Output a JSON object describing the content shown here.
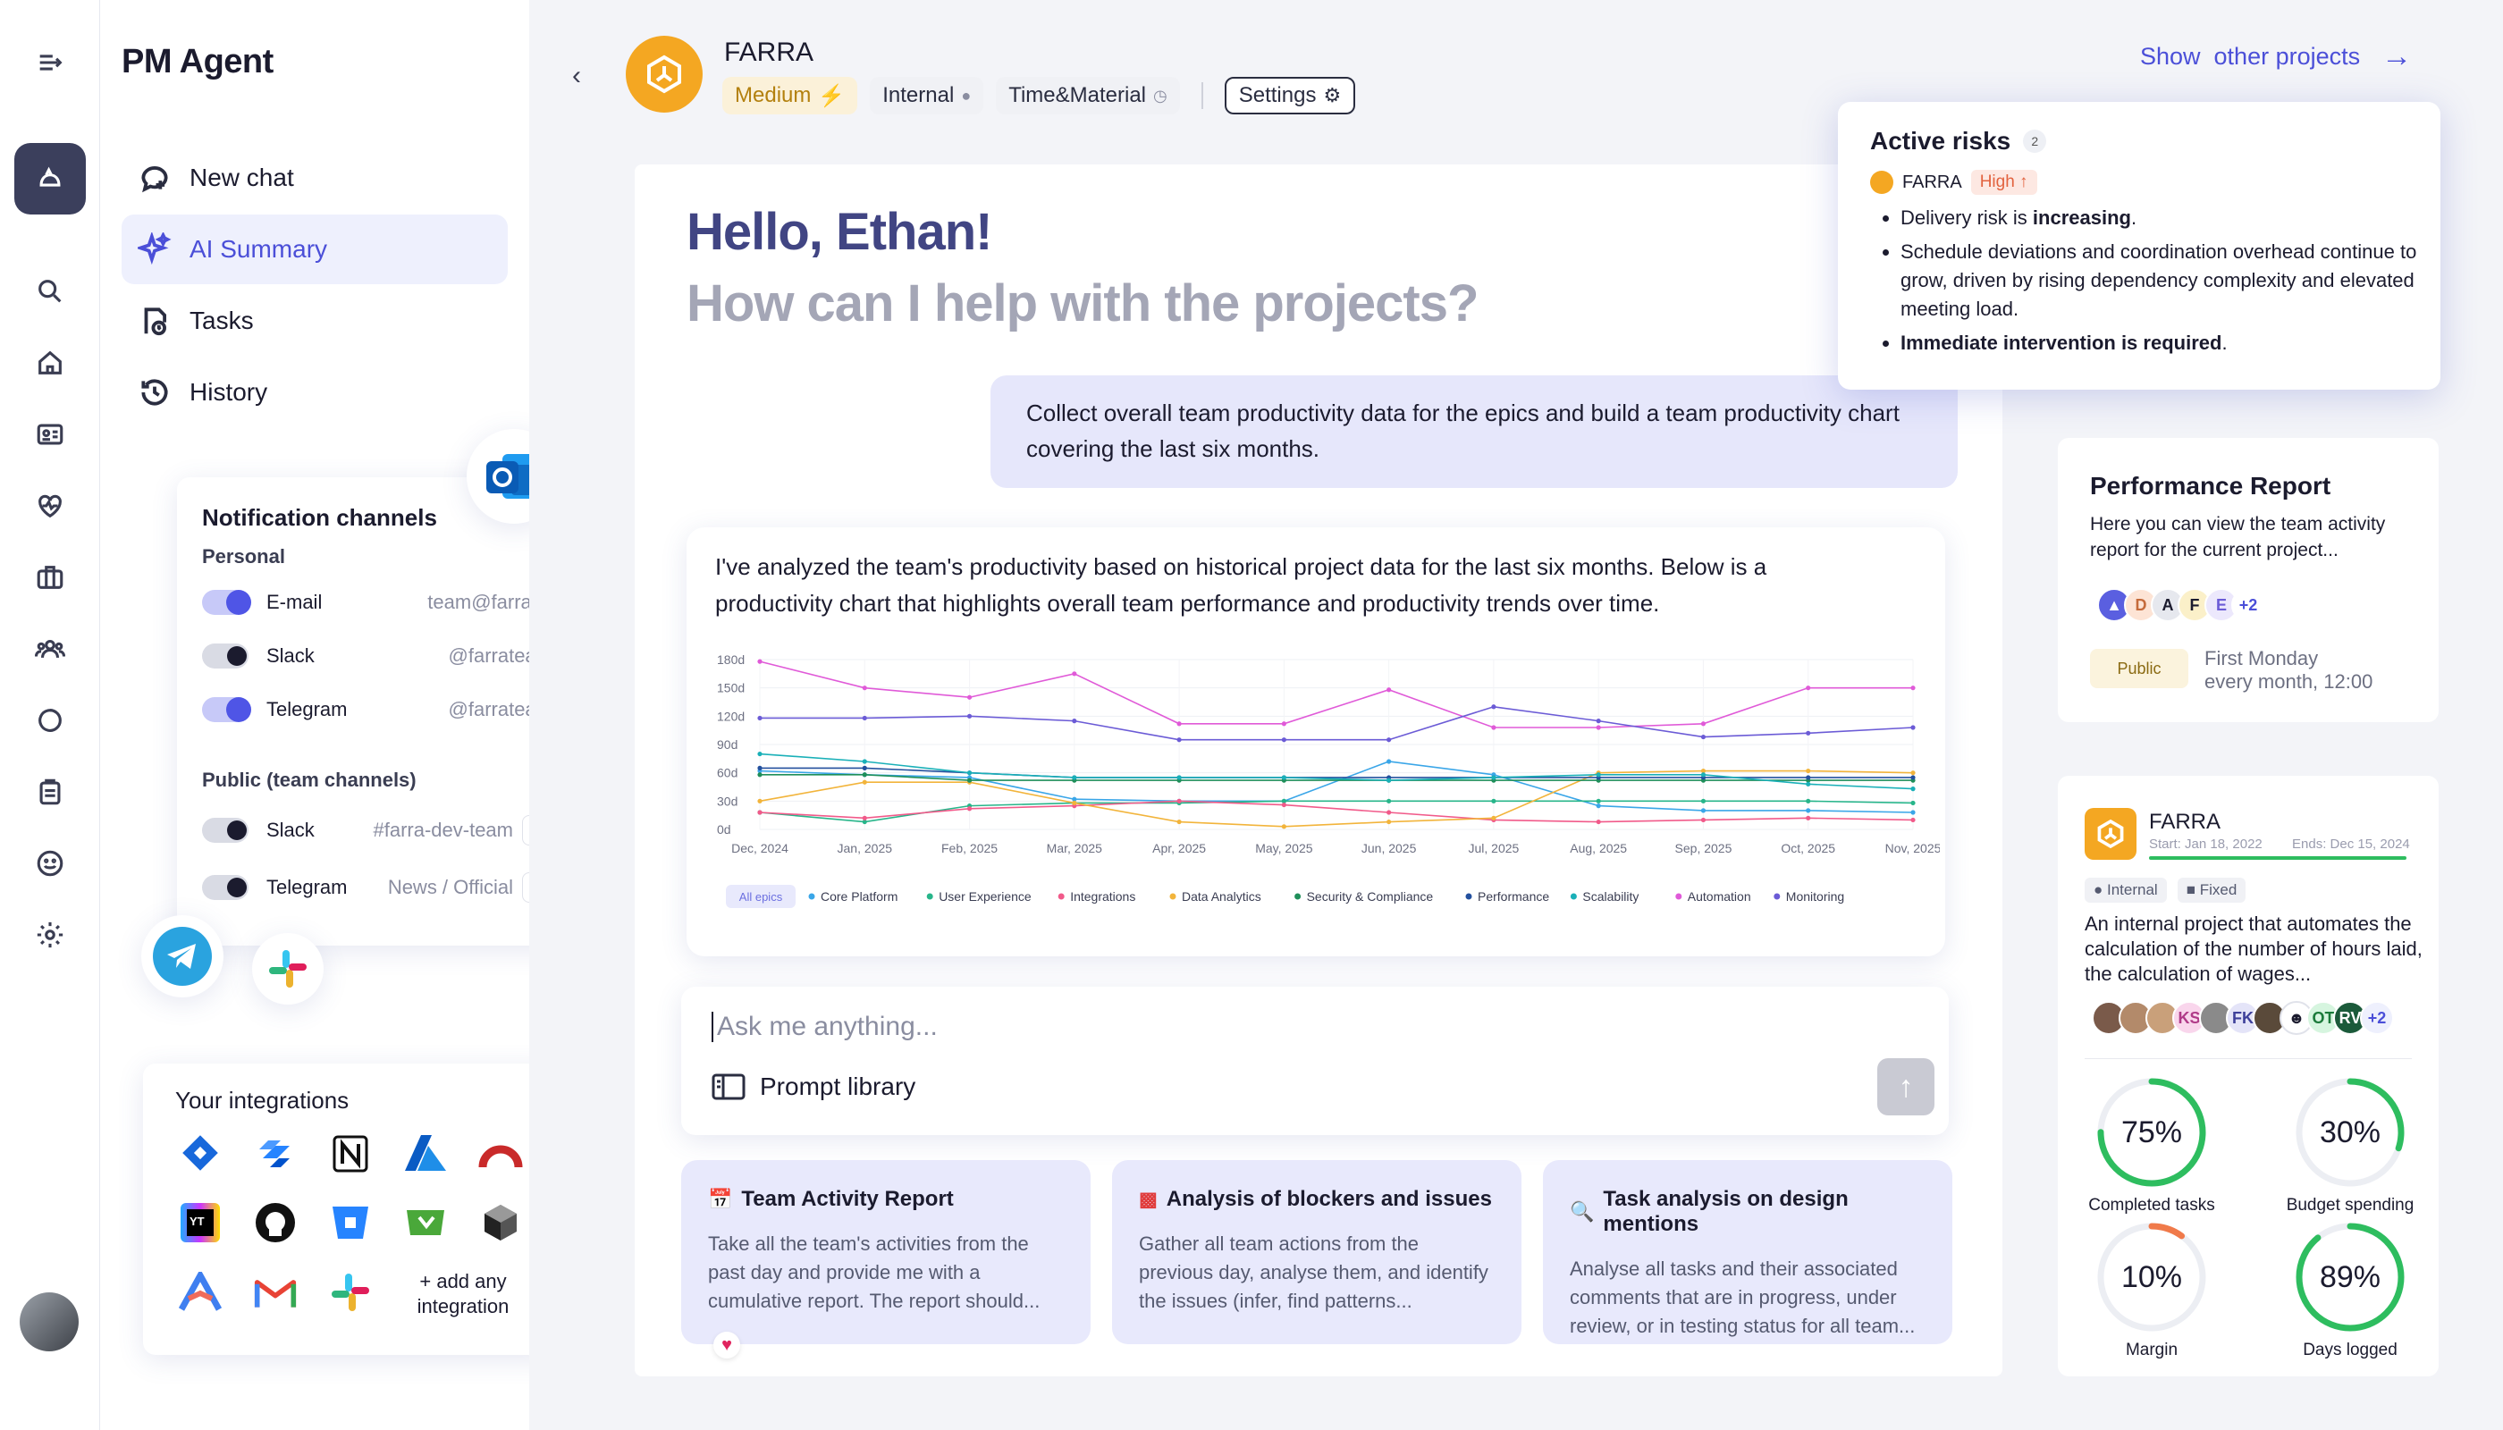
{
  "sidebar": {
    "brand": "PM Agent",
    "nav": [
      {
        "label": "New chat",
        "icon": "new-chat-icon"
      },
      {
        "label": "AI Summary",
        "icon": "sparkle-icon"
      },
      {
        "label": "Tasks",
        "icon": "tasks-icon"
      },
      {
        "label": "History",
        "icon": "history-icon"
      }
    ]
  },
  "notifications": {
    "title": "Notification channels",
    "personal_label": "Personal",
    "personal": [
      {
        "name": "E-mail",
        "value": "team@farra.ai",
        "on": true
      },
      {
        "name": "Slack",
        "value": "@farrateam",
        "on": false
      },
      {
        "name": "Telegram",
        "value": "@farrateam",
        "on": true
      }
    ],
    "public_label": "Public (team channels)",
    "public": [
      {
        "name": "Slack",
        "value": "#farra-dev-team",
        "on": false
      },
      {
        "name": "Telegram",
        "value": "News / Official",
        "on": false
      }
    ]
  },
  "integrations": {
    "title": "Your integrations",
    "add_label": "+ add any integration"
  },
  "project": {
    "name": "FARRA",
    "priority": "Medium",
    "type": "Internal",
    "billing": "Time&Material",
    "settings_label": "Settings",
    "show_other": "Show  other projects"
  },
  "chat": {
    "greeting": "Hello, Ethan!",
    "subtitle": "How can I help with the projects?",
    "user_message": "Collect overall team productivity data for the epics and build a team productivity chart covering the last six months.",
    "assistant_message": "I've analyzed the team's productivity based on historical project data for the last six months. Below is a productivity chart that highlights overall team performance and productivity trends over time.",
    "input_placeholder": "Ask me anything...",
    "prompt_library": "Prompt library"
  },
  "suggestions": [
    {
      "title": "Team Activity Report",
      "text": "Take all the team's activities from the past day and provide me with a cumulative report. The report should..."
    },
    {
      "title": "Analysis of blockers and issues",
      "text": "Gather all team actions from the previous day, analyse them, and identify the issues (infer, find patterns..."
    },
    {
      "title": "Task analysis on design mentions",
      "text": "Analyse all tasks and their associated comments that are in progress, under review, or in testing status for all team..."
    }
  ],
  "risks": {
    "title": "Active risks",
    "count": "2",
    "project": "FARRA",
    "level": "High ↑",
    "b1_pre": "Delivery risk is ",
    "b1_bold": "increasing",
    "b1_post": ".",
    "b2": "Schedule deviations and coordination overhead continue to grow, driven by rising dependency complexity and elevated meeting load.",
    "b3_bold": "Immediate intervention is required",
    "b3_post": "."
  },
  "report": {
    "title": "Performance Report",
    "text": "Here you can view the team activity report for the current project...",
    "avatars": [
      "D",
      "A",
      "F",
      "E",
      "+2"
    ],
    "visibility": "Public",
    "schedule_1": "First Monday",
    "schedule_2": "every month, 12:00"
  },
  "project_card": {
    "name": "FARRA",
    "start": "Start: Jan 18, 2022",
    "end": "Ends: Dec 15, 2024",
    "tag1": "Internal",
    "tag2": "Fixed",
    "description": "An internal project that automates the calculation of the number of hours laid, the calculation of wages...",
    "avatars": [
      "KS",
      "FK",
      "OT",
      "RV",
      "+2"
    ],
    "metrics": [
      {
        "value": "75%",
        "label": "Completed tasks",
        "fraction": 0.75,
        "color": "#2ebd5f"
      },
      {
        "value": "30%",
        "label": "Budget spending",
        "fraction": 0.3,
        "color": "#2ebd5f"
      },
      {
        "value": "10%",
        "label": "Margin",
        "fraction": 0.1,
        "color": "#f07a4a"
      },
      {
        "value": "89%",
        "label": "Days logged",
        "fraction": 0.89,
        "color": "#2ebd5f"
      }
    ]
  },
  "chart_data": {
    "type": "line",
    "x": [
      "Dec, 2024",
      "Jan, 2025",
      "Feb, 2025",
      "Mar, 2025",
      "Apr, 2025",
      "May, 2025",
      "Jun, 2025",
      "Jul, 2025",
      "Aug, 2025",
      "Sep, 2025",
      "Oct, 2025",
      "Nov, 2025"
    ],
    "y_ticks": [
      "180d",
      "150d",
      "120d",
      "90d",
      "60d",
      "30d",
      "0d"
    ],
    "ylim": [
      0,
      180
    ],
    "legend_all": "All epics",
    "series": [
      {
        "name": "Core Platform",
        "color": "#3aa6e8",
        "values": [
          62,
          58,
          55,
          32,
          30,
          30,
          72,
          58,
          25,
          20,
          20,
          18
        ]
      },
      {
        "name": "User Experience",
        "color": "#27b58a",
        "values": [
          18,
          8,
          25,
          28,
          28,
          30,
          30,
          30,
          30,
          30,
          30,
          28
        ]
      },
      {
        "name": "Integrations",
        "color": "#f15a8a",
        "values": [
          18,
          12,
          22,
          25,
          30,
          26,
          18,
          10,
          8,
          10,
          12,
          10
        ]
      },
      {
        "name": "Data Analytics",
        "color": "#f2b43b",
        "values": [
          30,
          50,
          50,
          28,
          8,
          3,
          8,
          12,
          60,
          62,
          62,
          60
        ]
      },
      {
        "name": "Security & Compliance",
        "color": "#1f8f5a",
        "values": [
          58,
          58,
          52,
          52,
          52,
          52,
          52,
          52,
          52,
          52,
          52,
          52
        ]
      },
      {
        "name": "Performance",
        "color": "#23509e",
        "values": [
          65,
          65,
          60,
          55,
          55,
          55,
          55,
          55,
          55,
          55,
          55,
          55
        ]
      },
      {
        "name": "Scalability",
        "color": "#1ab0b8",
        "values": [
          80,
          72,
          60,
          55,
          55,
          55,
          52,
          55,
          58,
          58,
          48,
          43
        ]
      },
      {
        "name": "Automation",
        "color": "#e05ad8",
        "values": [
          178,
          150,
          140,
          165,
          112,
          112,
          148,
          108,
          108,
          112,
          150,
          150
        ]
      },
      {
        "name": "Monitoring",
        "color": "#6b5bd6",
        "values": [
          118,
          118,
          120,
          115,
          95,
          95,
          95,
          130,
          115,
          98,
          102,
          108
        ]
      }
    ]
  }
}
